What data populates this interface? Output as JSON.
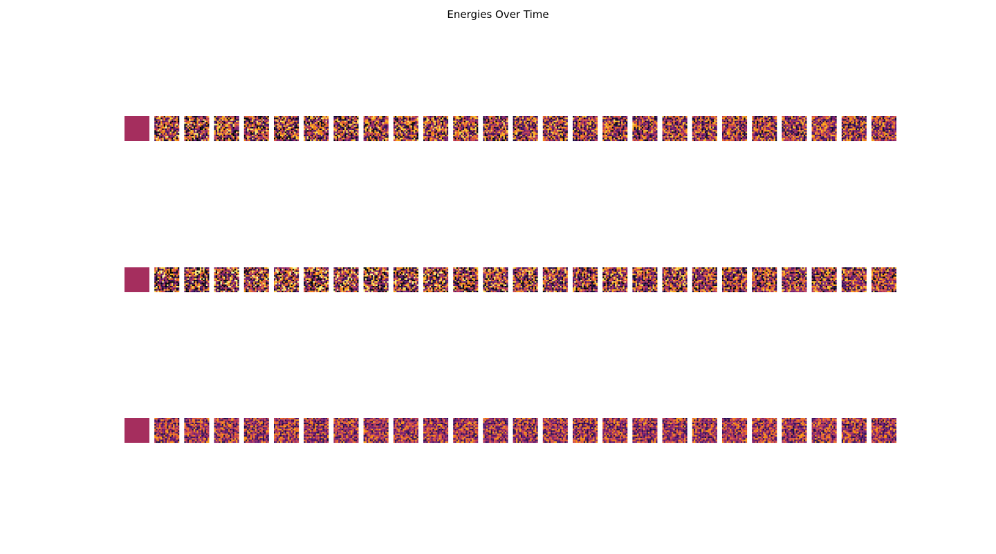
{
  "title": "Energies Over Time",
  "chart_data": {
    "type": "heatmap",
    "title": "Energies Over Time",
    "layout": "grid of small heatmap panels, axes hidden",
    "rows": 3,
    "panels_per_row": 26,
    "panel_grid_size": 16,
    "colormap": "inferno",
    "value_range": [
      0,
      1
    ],
    "first_panel_uniform_value": 0.45,
    "row_variability": [
      {
        "row": 1,
        "start_spread": 0.55,
        "end_spread": 0.4
      },
      {
        "row": 2,
        "start_spread": 0.6,
        "end_spread": 0.45
      },
      {
        "row": 3,
        "start_spread": 0.35,
        "end_spread": 0.35
      }
    ],
    "grid": false,
    "legend": "none"
  }
}
